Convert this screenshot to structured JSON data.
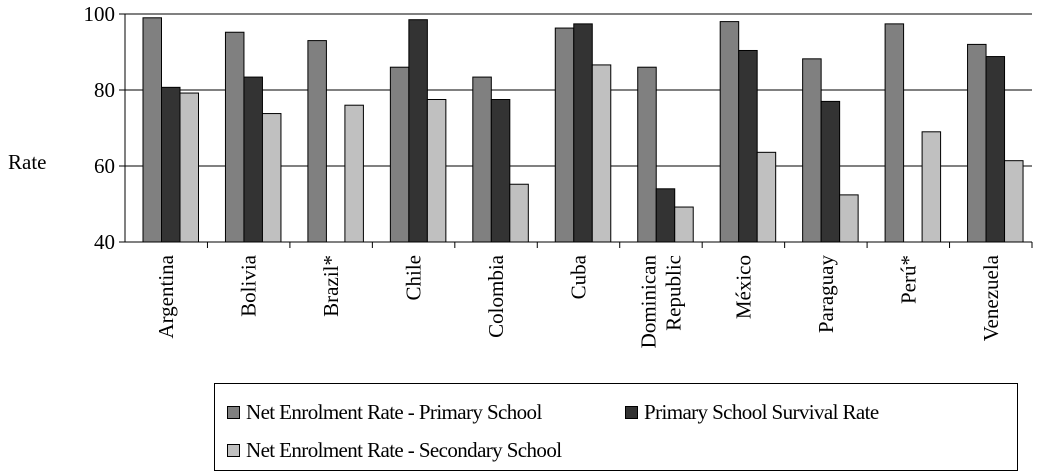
{
  "chart_data": {
    "type": "bar",
    "ylabel": "Rate",
    "ylim": [
      40,
      100
    ],
    "yticks": [
      40,
      60,
      80,
      100
    ],
    "grid": true,
    "categories": [
      "Argentina",
      "Bolivia",
      "Brazil*",
      "Chile",
      "Colombia",
      "Cuba",
      "Dominican Republic",
      "México",
      "Paraguay",
      "Perú*",
      "Venezuela"
    ],
    "series": [
      {
        "name": "Net Enrolment Rate - Primary School",
        "color": "#808080",
        "values": [
          99,
          95.2,
          93,
          86,
          83.4,
          96.3,
          86,
          98,
          88.2,
          97.4,
          92
        ]
      },
      {
        "name": "Primary School Survival Rate",
        "color": "#333333",
        "values": [
          80.7,
          83.4,
          null,
          98.5,
          77.5,
          97.4,
          54,
          90.4,
          77,
          null,
          88.8
        ]
      },
      {
        "name": "Net Enrolment Rate - Secondary School",
        "color": "#c0c0c0",
        "values": [
          79.2,
          73.8,
          76,
          77.5,
          55.2,
          86.6,
          49.2,
          63.6,
          52.4,
          69,
          61.4
        ]
      }
    ],
    "legend_position": "bottom"
  }
}
